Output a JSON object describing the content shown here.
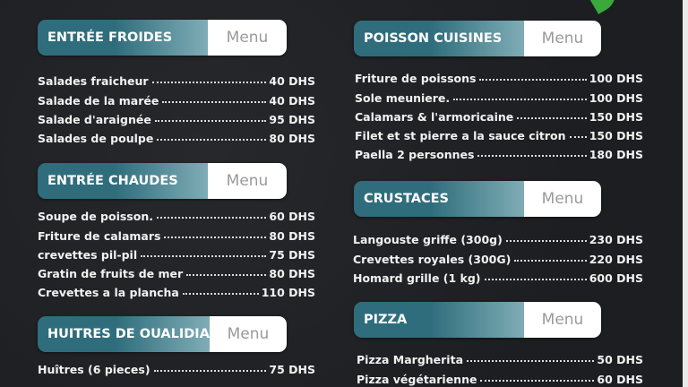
{
  "menu_label": "Menu",
  "sections": [
    {
      "title": "ENTRÉE FROIDES",
      "items": [
        {
          "name": "Salades fraicheur",
          "price": "40 DHS"
        },
        {
          "name": "Salade de la marée",
          "price": "40 DHS"
        },
        {
          "name": "Salade d'araignée",
          "price": "95 DHS"
        },
        {
          "name": "Salades de poulpe",
          "price": "80 DHS"
        }
      ]
    },
    {
      "title": "ENTRÉE CHAUDES",
      "items": [
        {
          "name": "Soupe de poisson.",
          "price": "60 DHS"
        },
        {
          "name": "Friture de calamars",
          "price": "80 DHS"
        },
        {
          "name": "crevettes pil-pil",
          "price": "75 DHS"
        },
        {
          "name": "Gratin de fruits de mer",
          "price": "80 DHS"
        },
        {
          "name": "Crevettes a la plancha",
          "price": "110 DHS"
        }
      ]
    },
    {
      "title": "HUITRES DE OUALIDIA",
      "items": [
        {
          "name": "Huîtres (6 pieces)",
          "price": "75 DHS"
        }
      ]
    },
    {
      "title": "POISSON CUISINES",
      "items": [
        {
          "name": "Friture de poissons",
          "price": "100 DHS"
        },
        {
          "name": "Sole meuniere.",
          "price": "100 DHS"
        },
        {
          "name": "Calamars & l'armoricaine",
          "price": "150 DHS"
        },
        {
          "name": "Filet et st pierre a la sauce citron",
          "price": "150 DHS"
        },
        {
          "name": "Paella 2 personnes",
          "price": "180 DHS"
        }
      ]
    },
    {
      "title": "CRUSTACES",
      "items": [
        {
          "name": "Langouste griffe (300g)",
          "price": "230 DHS"
        },
        {
          "name": "Crevettes royales (300G)",
          "price": "220 DHS"
        },
        {
          "name": "Homard grille (1 kg)",
          "price": "600 DHS"
        }
      ]
    },
    {
      "title": "PIZZA",
      "items": [
        {
          "name": "Pizza  Margherita",
          "price": "50 DHS"
        },
        {
          "name": "Pizza végétarienne",
          "price": "60 DHS"
        }
      ]
    }
  ]
}
